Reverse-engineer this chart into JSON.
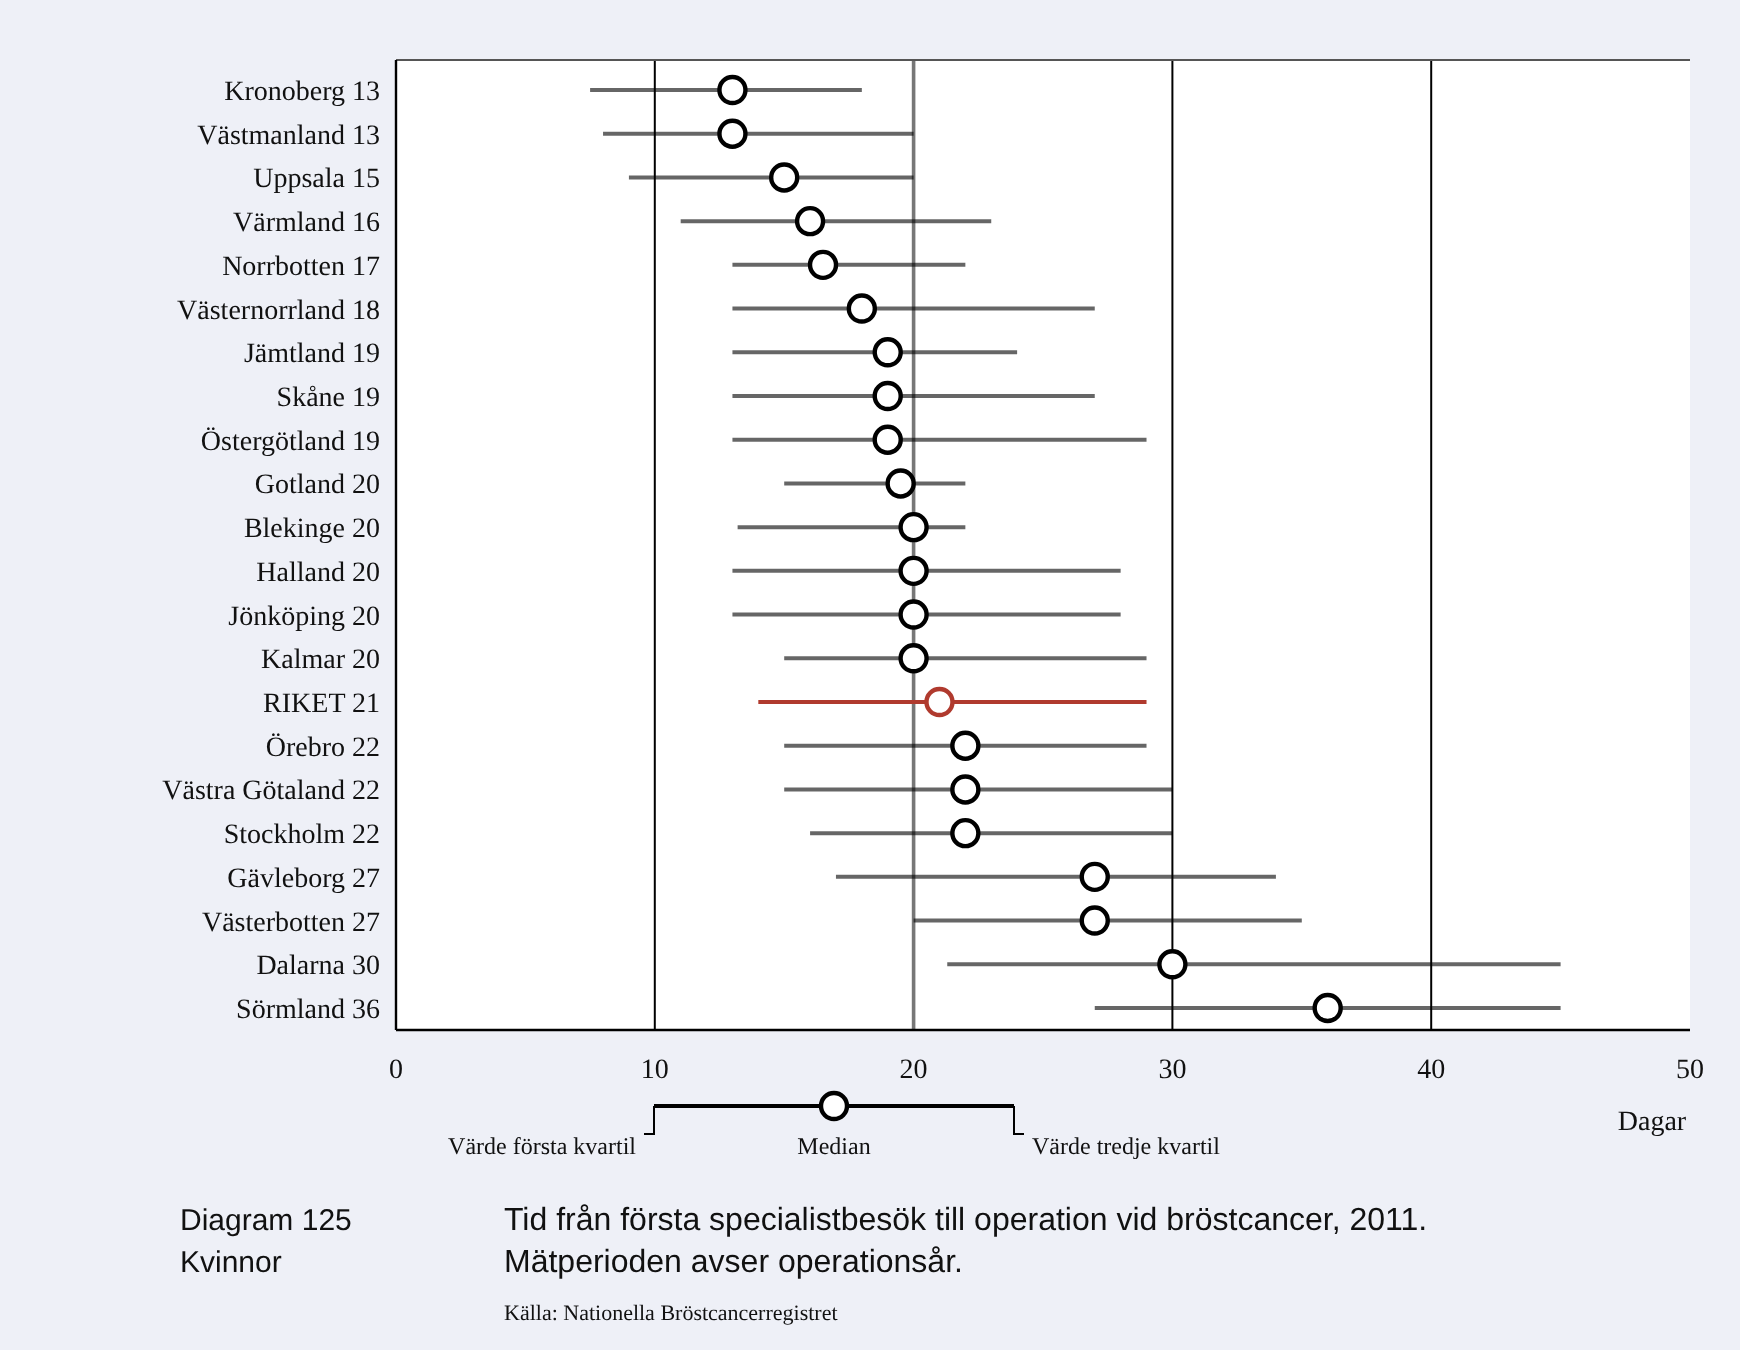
{
  "chart_data": {
    "type": "scatter",
    "orientation": "horizontal",
    "title": "Tid från första specialistbesök till operation vid bröstcancer, 2011.",
    "subtitle": "Mätperioden avser operationsår.",
    "xlabel": "Dagar",
    "categories": [
      "Kronoberg 13",
      "Västmanland 13",
      "Uppsala 15",
      "Värmland 16",
      "Norrbotten 17",
      "Västernorrland 18",
      "Jämtland 19",
      "Skåne 19",
      "Östergötland 19",
      "Gotland 20",
      "Blekinge 20",
      "Halland 20",
      "Jönköping 20",
      "Kalmar 20",
      "RIKET 21",
      "Örebro 22",
      "Västra Götaland 22",
      "Stockholm 22",
      "Gävleborg 27",
      "Västerbotten 27",
      "Dalarna 30",
      "Sörmland 36"
    ],
    "values": [
      13,
      13,
      15,
      16,
      16.5,
      18,
      19,
      19,
      19,
      19.5,
      20,
      20,
      20,
      20,
      21,
      22,
      22,
      22,
      27,
      27,
      30,
      36
    ],
    "errors": [
      [
        7.5,
        18
      ],
      [
        8,
        20
      ],
      [
        9,
        20
      ],
      [
        11,
        23
      ],
      [
        13,
        22
      ],
      [
        13,
        27
      ],
      [
        13,
        24
      ],
      [
        13,
        27
      ],
      [
        13,
        29
      ],
      [
        15,
        22
      ],
      [
        13.2,
        22
      ],
      [
        13,
        28
      ],
      [
        13,
        28
      ],
      [
        15,
        29
      ],
      [
        14,
        29
      ],
      [
        15,
        29
      ],
      [
        15,
        30
      ],
      [
        16,
        30
      ],
      [
        17,
        34
      ],
      [
        20,
        35
      ],
      [
        21.3,
        45
      ],
      [
        27,
        45
      ]
    ],
    "colors": [
      "#000000",
      "#000000",
      "#000000",
      "#000000",
      "#000000",
      "#000000",
      "#000000",
      "#000000",
      "#000000",
      "#000000",
      "#000000",
      "#000000",
      "#000000",
      "#000000",
      "#b03a2e",
      "#000000",
      "#000000",
      "#000000",
      "#000000",
      "#000000",
      "#000000",
      "#000000"
    ],
    "xlim": [
      0,
      50
    ],
    "xticks": [
      0,
      10,
      20,
      30,
      40,
      50
    ],
    "grid": "x",
    "marker": "circle",
    "ref_lines": [
      {
        "axis": "x",
        "value": 20,
        "color": "#777777"
      }
    ],
    "annotations": [
      "Diagram 125",
      "Kvinnor",
      "Källa: Nationella Bröstcancerregistret",
      "Värde första kvartil",
      "Median",
      "Värde tredje kvartil"
    ]
  }
}
